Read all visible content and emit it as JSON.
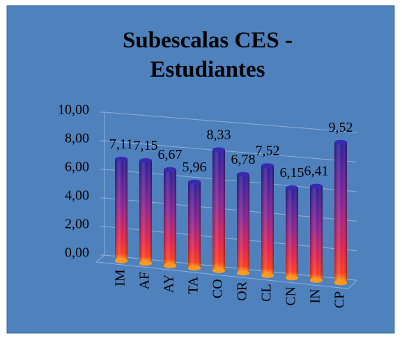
{
  "chart_data": {
    "type": "bar3d",
    "title": "Subescalas CES - Estudiantes",
    "categories": [
      "IM",
      "AF",
      "AY",
      "TA",
      "CO",
      "OR",
      "CL",
      "CN",
      "IN",
      "CP"
    ],
    "values": [
      7.11,
      7.15,
      6.67,
      5.96,
      8.33,
      6.78,
      7.52,
      6.15,
      6.41,
      9.52
    ],
    "value_labels": [
      "7,11",
      "7,15",
      "6,67",
      "5,96",
      "8,33",
      "6,78",
      "7,52",
      "6,15",
      "6,41",
      "9,52"
    ],
    "ylim": [
      0,
      10
    ],
    "yticks": [
      {
        "value": 0,
        "label": "0,00"
      },
      {
        "value": 2,
        "label": "2,00"
      },
      {
        "value": 4,
        "label": "4,00"
      },
      {
        "value": 6,
        "label": "6,00"
      },
      {
        "value": 8,
        "label": "8,00"
      },
      {
        "value": 10,
        "label": "10,00"
      }
    ],
    "grid": true
  }
}
